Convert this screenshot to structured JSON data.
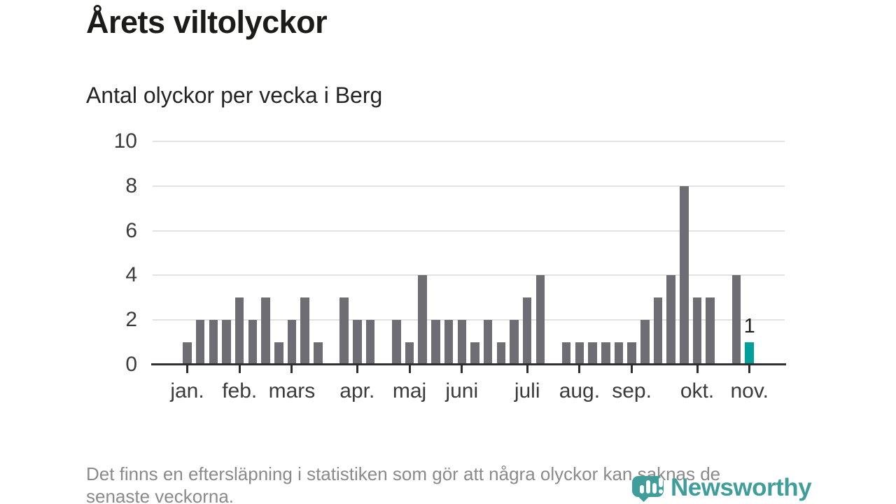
{
  "chart_data": {
    "type": "bar",
    "title": "Årets viltolyckor",
    "subtitle": "Antal olyckor per vecka i Berg",
    "x_unit": "week",
    "ylim": [
      0,
      10
    ],
    "yticks": [
      0,
      2,
      4,
      6,
      8,
      10
    ],
    "grid": true,
    "legend": "none",
    "values": [
      1,
      2,
      2,
      2,
      3,
      2,
      3,
      1,
      2,
      3,
      1,
      0,
      3,
      2,
      2,
      0,
      2,
      1,
      4,
      2,
      2,
      2,
      1,
      2,
      1,
      2,
      3,
      4,
      0,
      1,
      1,
      1,
      1,
      1,
      1,
      2,
      3,
      4,
      8,
      3,
      3,
      0,
      4,
      1
    ],
    "months": [
      {
        "label": "jan.",
        "week": 1
      },
      {
        "label": "feb.",
        "week": 5
      },
      {
        "label": "mars",
        "week": 9
      },
      {
        "label": "apr.",
        "week": 14
      },
      {
        "label": "maj",
        "week": 18
      },
      {
        "label": "juni",
        "week": 22
      },
      {
        "label": "juli",
        "week": 27
      },
      {
        "label": "aug.",
        "week": 31
      },
      {
        "label": "sep.",
        "week": 35
      },
      {
        "label": "okt.",
        "week": 40
      },
      {
        "label": "nov.",
        "week": 44
      }
    ],
    "highlight": {
      "index": 43,
      "value": 1,
      "label": "1"
    },
    "colors": {
      "bar": "#6d6d73",
      "highlight": "#00a09a",
      "grid": "#e2e2e2",
      "axis": "#2f2f2f",
      "tick_label": "#3b3b3b",
      "value_label": "#1d1d1b"
    }
  },
  "footer": {
    "lines": [
      "Det finns en eftersläpning i statistiken som gör att några olyckor kan saknas de",
      "senaste veckorna."
    ]
  },
  "logo": {
    "name": "Newsworthy",
    "color": "#3f9e9a"
  }
}
